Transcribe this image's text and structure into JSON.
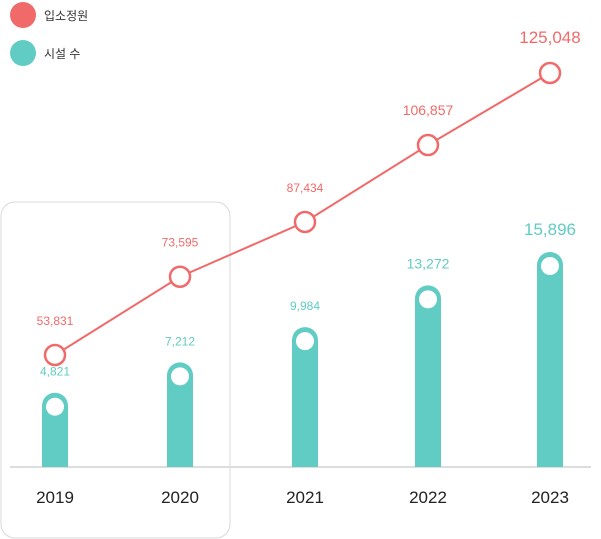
{
  "colors": {
    "line": "#F16A6A",
    "bar": "#61CCC3",
    "axis": "#DDDDDD",
    "highlight_border": "#D9D9D9",
    "text": "#222222"
  },
  "legend": [
    {
      "label": "입소정원",
      "color": "#F16A6A"
    },
    {
      "label": "시설 수",
      "color": "#61CCC3"
    }
  ],
  "chart_data": {
    "type": "bar+line",
    "categories": [
      "2019",
      "2020",
      "2021",
      "2022",
      "2023"
    ],
    "series": [
      {
        "name": "입소정원",
        "type": "line",
        "values": [
          53831,
          73595,
          87434,
          106857,
          125048
        ],
        "labels": [
          "53,831",
          "73,595",
          "87,434",
          "106,857",
          "125,048"
        ]
      },
      {
        "name": "시설 수",
        "type": "bar",
        "values": [
          4821,
          7212,
          9984,
          13272,
          15896
        ],
        "labels": [
          "4,821",
          "7,212",
          "9,984",
          "13,272",
          "15,896"
        ]
      }
    ],
    "highlighted_categories": [
      "2019",
      "2020"
    ],
    "legend_position": "top-left",
    "grid": false
  }
}
